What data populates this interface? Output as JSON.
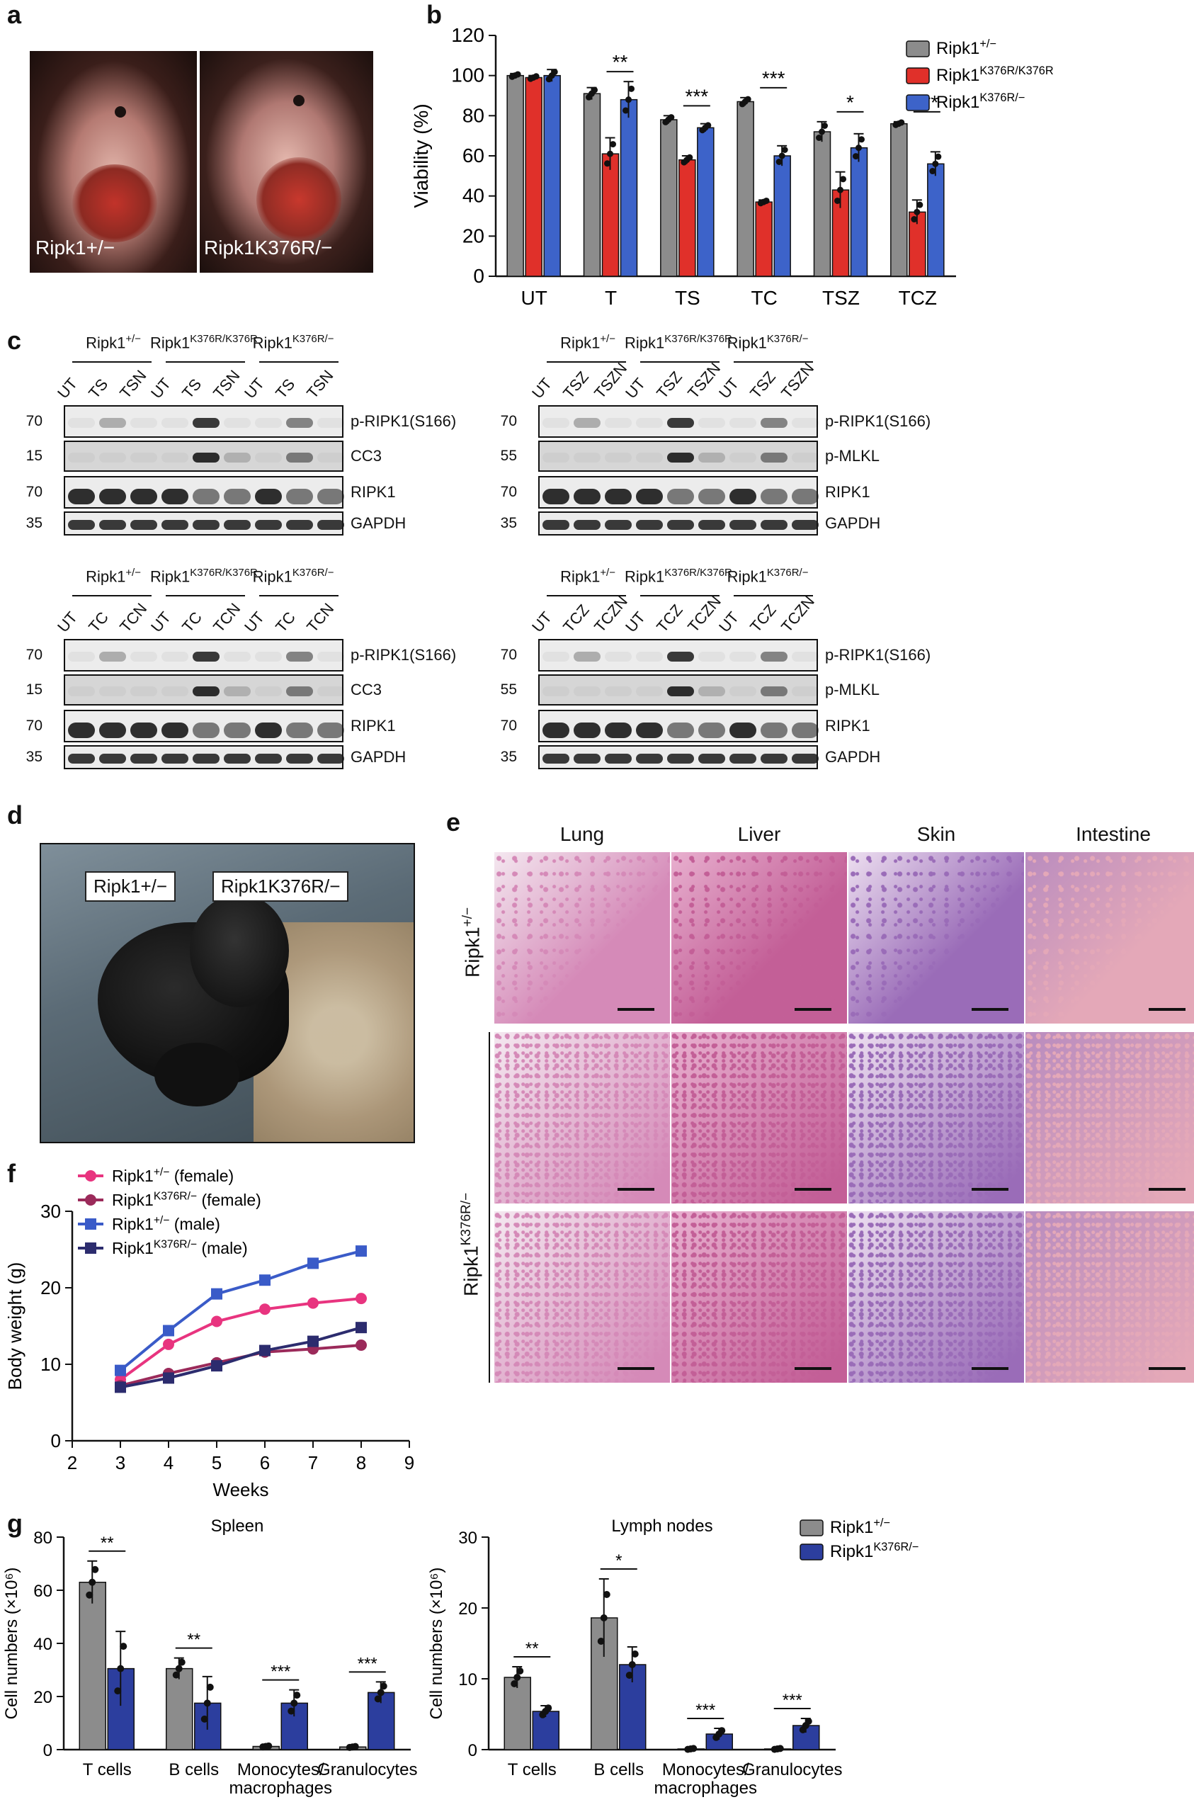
{
  "panels": {
    "a": {
      "label": "a",
      "captions": [
        "Ripk1+/−",
        "Ripk1K376R/−"
      ]
    },
    "b": {
      "label": "b"
    },
    "c": {
      "label": "c",
      "groups": [
        "Ripk1+/−",
        "Ripk1K376R/K376R",
        "Ripk1K376R/−"
      ],
      "blots": [
        {
          "id": "TS",
          "lanes": [
            "UT",
            "TS",
            "TSN",
            "UT",
            "TS",
            "TSN",
            "UT",
            "TS",
            "TSN"
          ],
          "rows": [
            {
              "mw": "70",
              "label": "p-RIPK1(S166)"
            },
            {
              "mw": "15",
              "label": "CC3"
            },
            {
              "mw": "70",
              "label": "RIPK1"
            },
            {
              "mw": "35",
              "label": "GAPDH"
            }
          ]
        },
        {
          "id": "TSZ",
          "lanes": [
            "UT",
            "TSZ",
            "TSZN",
            "UT",
            "TSZ",
            "TSZN",
            "UT",
            "TSZ",
            "TSZN"
          ],
          "rows": [
            {
              "mw": "70",
              "label": "p-RIPK1(S166)"
            },
            {
              "mw": "55",
              "label": "p-MLKL"
            },
            {
              "mw": "70",
              "label": "RIPK1"
            },
            {
              "mw": "35",
              "label": "GAPDH"
            }
          ]
        },
        {
          "id": "TC",
          "lanes": [
            "UT",
            "TC",
            "TCN",
            "UT",
            "TC",
            "TCN",
            "UT",
            "TC",
            "TCN"
          ],
          "rows": [
            {
              "mw": "70",
              "label": "p-RIPK1(S166)"
            },
            {
              "mw": "15",
              "label": "CC3"
            },
            {
              "mw": "70",
              "label": "RIPK1"
            },
            {
              "mw": "35",
              "label": "GAPDH"
            }
          ]
        },
        {
          "id": "TCZ",
          "lanes": [
            "UT",
            "TCZ",
            "TCZN",
            "UT",
            "TCZ",
            "TCZN",
            "UT",
            "TCZ",
            "TCZN"
          ],
          "rows": [
            {
              "mw": "70",
              "label": "p-RIPK1(S166)"
            },
            {
              "mw": "55",
              "label": "p-MLKL"
            },
            {
              "mw": "70",
              "label": "RIPK1"
            },
            {
              "mw": "35",
              "label": "GAPDH"
            }
          ]
        }
      ]
    },
    "d": {
      "label": "d",
      "captions": [
        "Ripk1+/−",
        "Ripk1K376R/−"
      ]
    },
    "e": {
      "label": "e",
      "columns": [
        "Lung",
        "Liver",
        "Skin",
        "Intestine"
      ],
      "rows": [
        "Ripk1+/−",
        "Ripk1K376R/−"
      ]
    },
    "f": {
      "label": "f"
    },
    "g": {
      "label": "g"
    }
  },
  "chart_data": [
    {
      "id": "b",
      "type": "bar",
      "ylabel": "Viability (%)",
      "ylim": [
        0,
        120
      ],
      "yticks": [
        0,
        20,
        40,
        60,
        80,
        100,
        120
      ],
      "categories": [
        "UT",
        "T",
        "TS",
        "TC",
        "TSZ",
        "TCZ"
      ],
      "legend_position": "top-right",
      "series": [
        {
          "name": "Ripk1+/−",
          "color": "#8c8c8c",
          "values": [
            100,
            91,
            78,
            87,
            72,
            76
          ],
          "errors": [
            1,
            3,
            2,
            2,
            5,
            1
          ]
        },
        {
          "name": "Ripk1K376R/K376R",
          "color": "#e0302a",
          "values": [
            99,
            61,
            58,
            37,
            43,
            32
          ],
          "errors": [
            1,
            8,
            2,
            1,
            9,
            6
          ]
        },
        {
          "name": "Ripk1K376R/−",
          "color": "#3d63c9",
          "values": [
            100,
            88,
            74,
            60,
            64,
            56
          ],
          "errors": [
            3,
            9,
            2,
            5,
            7,
            6
          ]
        }
      ],
      "significance": [
        {
          "category": "T",
          "text": "**"
        },
        {
          "category": "TS",
          "text": "***"
        },
        {
          "category": "TC",
          "text": "***"
        },
        {
          "category": "TSZ",
          "text": "*"
        },
        {
          "category": "TCZ",
          "text": "***"
        }
      ]
    },
    {
      "id": "f",
      "type": "line",
      "xlabel": "Weeks",
      "ylabel": "Body weight (g)",
      "xlim": [
        2,
        9
      ],
      "ylim": [
        0,
        30
      ],
      "xticks": [
        2,
        3,
        4,
        5,
        6,
        7,
        8,
        9
      ],
      "yticks": [
        0,
        10,
        20,
        30
      ],
      "x": [
        3,
        4,
        5,
        6,
        7,
        8
      ],
      "legend_position": "top-left",
      "series": [
        {
          "name": "Ripk1+/− (female)",
          "color": "#e8347f",
          "marker": "circle",
          "values": [
            8.0,
            12.6,
            15.6,
            17.2,
            18.0,
            18.6
          ]
        },
        {
          "name": "Ripk1K376R/− (female)",
          "color": "#9b2a5a",
          "marker": "circle",
          "values": [
            7.2,
            8.8,
            10.2,
            11.6,
            12.0,
            12.5
          ]
        },
        {
          "name": "Ripk1+/− (male)",
          "color": "#3a5bc8",
          "marker": "square",
          "values": [
            9.2,
            14.4,
            19.2,
            21.0,
            23.2,
            24.8
          ]
        },
        {
          "name": "Ripk1K376R/− (male)",
          "color": "#2c2c6e",
          "marker": "square",
          "values": [
            7.0,
            8.2,
            9.8,
            11.8,
            13.0,
            14.8
          ]
        }
      ]
    },
    {
      "id": "g-spleen",
      "type": "bar",
      "title": "Spleen",
      "ylabel": "Cell numbers (×10⁶)",
      "ylim": [
        0,
        80
      ],
      "yticks": [
        0,
        20,
        40,
        60,
        80
      ],
      "categories": [
        "T cells",
        "B cells",
        "Monocytes/\nmacrophages",
        "Granulocytes"
      ],
      "series": [
        {
          "name": "Ripk1+/−",
          "color": "#8c8c8c",
          "values": [
            63,
            30.5,
            1.2,
            1.0
          ],
          "errors": [
            8,
            4,
            0.3,
            0.3
          ]
        },
        {
          "name": "Ripk1K376R/−",
          "color": "#2c3e9e",
          "values": [
            30.5,
            17.5,
            17.5,
            21.5
          ],
          "errors": [
            14,
            10,
            5,
            4
          ]
        }
      ],
      "significance": [
        {
          "category": "T cells",
          "text": "**"
        },
        {
          "category": "B cells",
          "text": "**"
        },
        {
          "category": "Monocytes/\nmacrophages",
          "text": "***"
        },
        {
          "category": "Granulocytes",
          "text": "***"
        }
      ]
    },
    {
      "id": "g-lymph",
      "type": "bar",
      "title": "Lymph nodes",
      "ylabel": "Cell numbers (×10⁶)",
      "ylim": [
        0,
        30
      ],
      "yticks": [
        0,
        10,
        20,
        30
      ],
      "categories": [
        "T cells",
        "B cells",
        "Monocytes/\nmacrophages",
        "Granulocytes"
      ],
      "legend_position": "top-right",
      "series": [
        {
          "name": "Ripk1+/−",
          "color": "#8c8c8c",
          "values": [
            10.2,
            18.6,
            0.1,
            0.1
          ],
          "errors": [
            1.5,
            5.5,
            0.1,
            0.1
          ]
        },
        {
          "name": "Ripk1K376R/−",
          "color": "#2c3e9e",
          "values": [
            5.4,
            12.0,
            2.2,
            3.4
          ],
          "errors": [
            0.8,
            2.5,
            0.8,
            1.0
          ]
        }
      ],
      "significance": [
        {
          "category": "T cells",
          "text": "**"
        },
        {
          "category": "B cells",
          "text": "*"
        },
        {
          "category": "Monocytes/\nmacrophages",
          "text": "***"
        },
        {
          "category": "Granulocytes",
          "text": "***"
        }
      ]
    }
  ]
}
